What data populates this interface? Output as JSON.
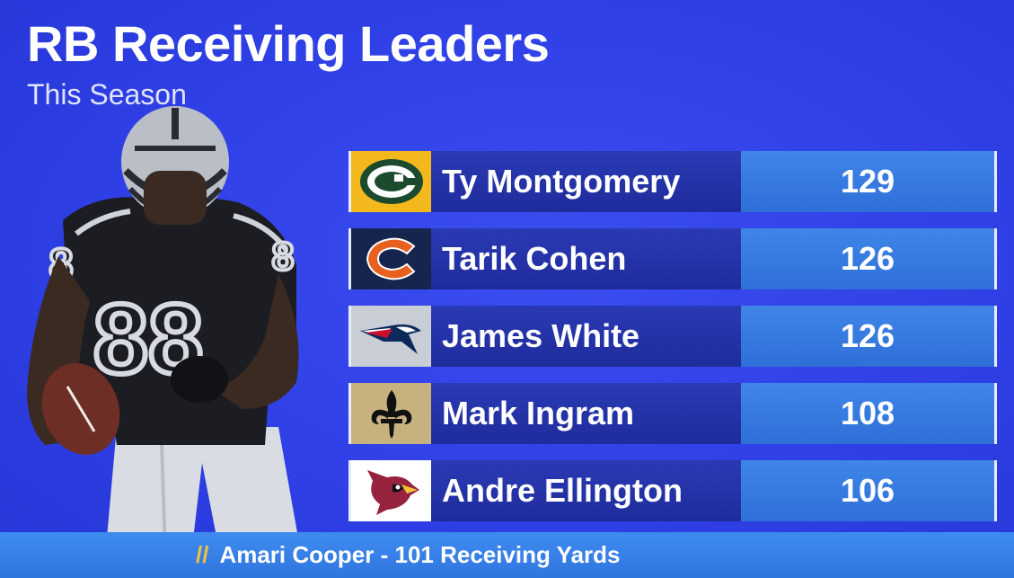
{
  "header": {
    "title": "RB Receiving Leaders",
    "subtitle": "This Season"
  },
  "leaders": [
    {
      "team_icon": "packers-logo-icon",
      "name": "Ty Montgomery",
      "value": "129",
      "logo_bg": "#f3b81c"
    },
    {
      "team_icon": "bears-logo-icon",
      "name": "Tarik Cohen",
      "value": "126",
      "logo_bg": "#16254d"
    },
    {
      "team_icon": "patriots-logo-icon",
      "name": "James White",
      "value": "126",
      "logo_bg": "#c9ced6"
    },
    {
      "team_icon": "saints-logo-icon",
      "name": "Mark Ingram",
      "value": "108",
      "logo_bg": "#c7b17f"
    },
    {
      "team_icon": "cardinals-logo-icon",
      "name": "Andre Ellington",
      "value": "106",
      "logo_bg": "#ffffff"
    }
  ],
  "ticker": {
    "slash": "//",
    "text": "Amari Cooper - 101 Receiving Yards"
  },
  "colors": {
    "background": "#2f40e6",
    "name_bar": "#1f2c9c",
    "value_bar": "#2f6fd8",
    "ticker_accent": "#f2c23b"
  }
}
